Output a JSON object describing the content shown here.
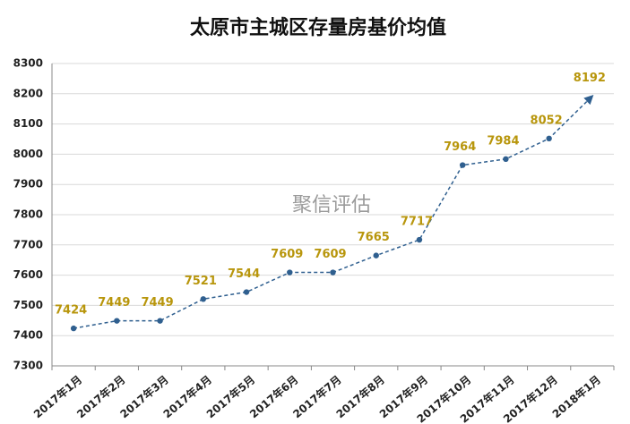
{
  "chart_data": {
    "type": "line",
    "title": "太原市主城区存量房基价均值",
    "annotation": "聚信评估",
    "categories": [
      "2017年1月",
      "2017年2月",
      "2017年3月",
      "2017年4月",
      "2017年5月",
      "2017年6月",
      "2017年7月",
      "2017年8月",
      "2017年9月",
      "2017年10月",
      "2017年11月",
      "2017年12月",
      "2018年1月"
    ],
    "values": [
      7424,
      7449,
      7449,
      7521,
      7544,
      7609,
      7609,
      7665,
      7717,
      7964,
      7984,
      8052,
      8192
    ],
    "color": "#2f5f8f",
    "label_color": "#b8960c",
    "ylim": [
      7300,
      8300
    ],
    "yticks": [
      7300,
      7400,
      7500,
      7600,
      7700,
      7800,
      7900,
      8000,
      8100,
      8200,
      8300
    ],
    "grid": true
  }
}
